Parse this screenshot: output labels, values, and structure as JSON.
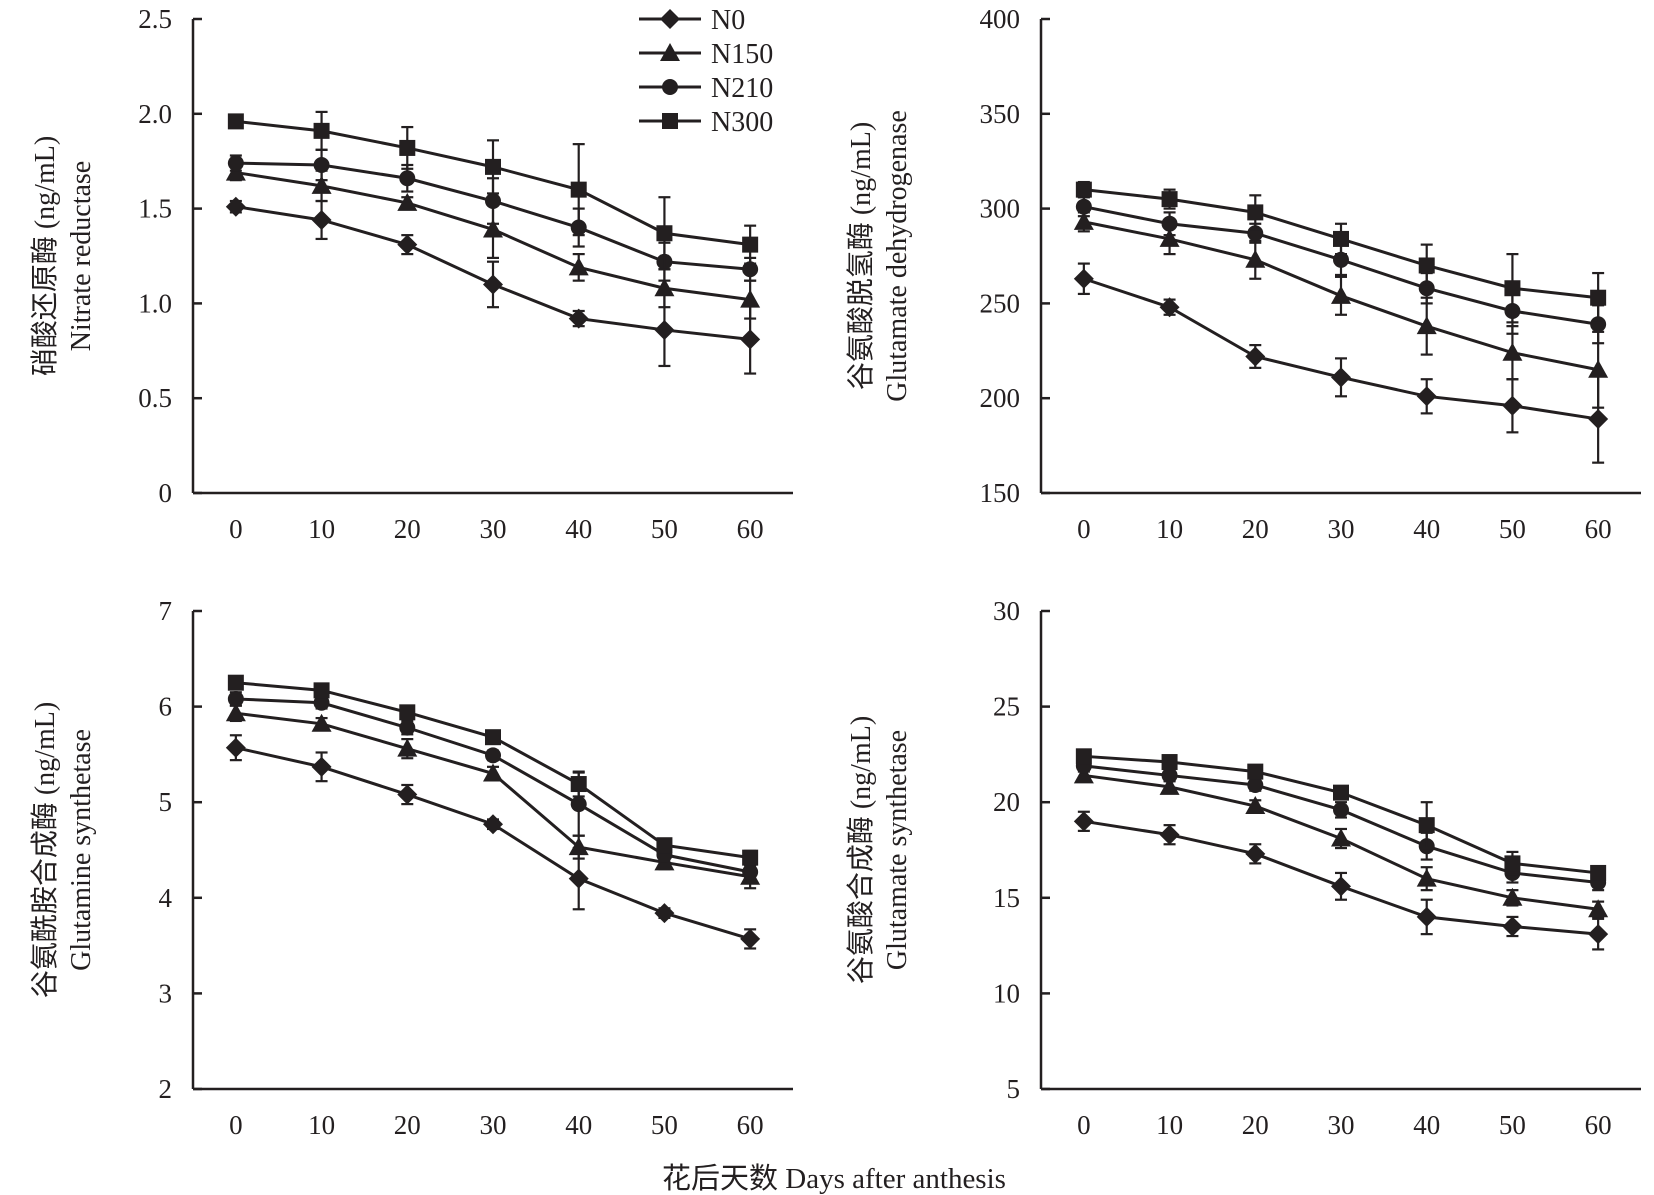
{
  "figure": {
    "shared_xlabel": "花后天数 Days after anthesis",
    "legend": [
      {
        "label": "N0",
        "marker": "diamond"
      },
      {
        "label": "N150",
        "marker": "triangle"
      },
      {
        "label": "N210",
        "marker": "circle"
      },
      {
        "label": "N300",
        "marker": "square"
      }
    ],
    "colors": {
      "ink": "#231f20",
      "background": "#ffffff"
    }
  },
  "chart_data": [
    {
      "type": "line",
      "ylabel_cn": "硝酸还原酶 (ng/mL)",
      "ylabel_en": "Nitrate reductase",
      "xlabel": "",
      "x": [
        0,
        10,
        20,
        30,
        40,
        50,
        60
      ],
      "xlim": [
        -5,
        65
      ],
      "ylim": [
        0,
        2.5
      ],
      "yticks": [
        0,
        0.5,
        1.0,
        1.5,
        2.0,
        2.5
      ],
      "ytick_labels": [
        "0",
        "0.5",
        "1.0",
        "1.5",
        "2.0",
        "2.5"
      ],
      "grid": false,
      "legend_position": "top-right",
      "series": [
        {
          "name": "N0",
          "marker": "diamond",
          "values": [
            1.51,
            1.44,
            1.31,
            1.1,
            0.92,
            0.86,
            0.81
          ],
          "errors": [
            0.03,
            0.1,
            0.05,
            0.12,
            0.04,
            0.19,
            0.18
          ]
        },
        {
          "name": "N150",
          "marker": "triangle",
          "values": [
            1.69,
            1.62,
            1.53,
            1.39,
            1.19,
            1.08,
            1.02
          ],
          "errors": [
            0.04,
            0.08,
            0.03,
            0.15,
            0.07,
            0.1,
            0.1
          ]
        },
        {
          "name": "N210",
          "marker": "circle",
          "values": [
            1.74,
            1.73,
            1.66,
            1.54,
            1.4,
            1.22,
            1.18
          ],
          "errors": [
            0.04,
            0.08,
            0.07,
            0.12,
            0.1,
            0.1,
            0.06
          ]
        },
        {
          "name": "N300",
          "marker": "square",
          "values": [
            1.96,
            1.91,
            1.82,
            1.72,
            1.6,
            1.37,
            1.31
          ],
          "errors": [
            0.02,
            0.1,
            0.11,
            0.14,
            0.24,
            0.19,
            0.1
          ]
        }
      ]
    },
    {
      "type": "line",
      "ylabel_cn": "谷氨酸脱氢酶 (ng/mL)",
      "ylabel_en": "Glutamate dehydrogenase",
      "xlabel": "",
      "x": [
        0,
        10,
        20,
        30,
        40,
        50,
        60
      ],
      "xlim": [
        -5,
        65
      ],
      "ylim": [
        150,
        400
      ],
      "yticks": [
        150,
        200,
        250,
        300,
        350,
        400
      ],
      "ytick_labels": [
        "150",
        "200",
        "250",
        "300",
        "350",
        "400"
      ],
      "grid": false,
      "series": [
        {
          "name": "N0",
          "marker": "diamond",
          "values": [
            263,
            248,
            222,
            211,
            201,
            196,
            189
          ],
          "errors": [
            8,
            4,
            6,
            10,
            9,
            14,
            23
          ]
        },
        {
          "name": "N150",
          "marker": "triangle",
          "values": [
            293,
            284,
            273,
            254,
            238,
            224,
            215
          ],
          "errors": [
            5,
            8,
            10,
            10,
            15,
            14,
            20
          ]
        },
        {
          "name": "N210",
          "marker": "circle",
          "values": [
            301,
            292,
            287,
            273,
            258,
            246,
            239
          ],
          "errors": [
            5,
            6,
            5,
            8,
            8,
            12,
            10
          ]
        },
        {
          "name": "N300",
          "marker": "square",
          "values": [
            310,
            305,
            298,
            284,
            270,
            258,
            253
          ],
          "errors": [
            4,
            5,
            9,
            8,
            11,
            18,
            13
          ]
        }
      ]
    },
    {
      "type": "line",
      "ylabel_cn": "谷氨酰胺合成酶 (ng/mL)",
      "ylabel_en": "Glutamine synthetase",
      "xlabel": "",
      "x": [
        0,
        10,
        20,
        30,
        40,
        50,
        60
      ],
      "xlim": [
        -5,
        65
      ],
      "ylim": [
        2,
        7
      ],
      "yticks": [
        2,
        3,
        4,
        5,
        6,
        7
      ],
      "ytick_labels": [
        "2",
        "3",
        "4",
        "5",
        "6",
        "7"
      ],
      "grid": false,
      "series": [
        {
          "name": "N0",
          "marker": "diamond",
          "values": [
            5.57,
            5.37,
            5.08,
            4.77,
            4.2,
            3.84,
            3.57
          ],
          "errors": [
            0.13,
            0.15,
            0.1,
            0.05,
            0.32,
            0.05,
            0.1
          ]
        },
        {
          "name": "N150",
          "marker": "triangle",
          "values": [
            5.93,
            5.82,
            5.56,
            5.3,
            4.53,
            4.37,
            4.22
          ],
          "errors": [
            0.08,
            0.06,
            0.1,
            0.07,
            0.12,
            0.07,
            0.12
          ]
        },
        {
          "name": "N210",
          "marker": "circle",
          "values": [
            6.08,
            6.04,
            5.78,
            5.49,
            4.98,
            4.45,
            4.27
          ],
          "errors": [
            0.07,
            0.06,
            0.07,
            0.05,
            0.33,
            0.07,
            0.07
          ]
        },
        {
          "name": "N300",
          "marker": "square",
          "values": [
            6.25,
            6.17,
            5.94,
            5.68,
            5.19,
            4.55,
            4.42
          ],
          "errors": [
            0.06,
            0.04,
            0.05,
            0.04,
            0.13,
            0.06,
            0.07
          ]
        }
      ]
    },
    {
      "type": "line",
      "ylabel_cn": "谷氨酸合成酶 (ng/mL)",
      "ylabel_en": "Glutamate synthetase",
      "xlabel": "",
      "x": [
        0,
        10,
        20,
        30,
        40,
        50,
        60
      ],
      "xlim": [
        -5,
        65
      ],
      "ylim": [
        5,
        30
      ],
      "yticks": [
        5,
        10,
        15,
        20,
        25,
        30
      ],
      "ytick_labels": [
        "5",
        "10",
        "15",
        "20",
        "25",
        "30"
      ],
      "grid": false,
      "series": [
        {
          "name": "N0",
          "marker": "diamond",
          "values": [
            19.0,
            18.3,
            17.3,
            15.6,
            14.0,
            13.5,
            13.1
          ],
          "errors": [
            0.5,
            0.5,
            0.5,
            0.7,
            0.9,
            0.5,
            0.8
          ]
        },
        {
          "name": "N150",
          "marker": "triangle",
          "values": [
            21.4,
            20.8,
            19.8,
            18.1,
            16.0,
            15.0,
            14.4
          ],
          "errors": [
            0.3,
            0.3,
            0.3,
            0.5,
            0.6,
            0.4,
            0.4
          ]
        },
        {
          "name": "N210",
          "marker": "circle",
          "values": [
            21.9,
            21.4,
            20.9,
            19.6,
            17.7,
            16.3,
            15.8
          ],
          "errors": [
            0.3,
            0.3,
            0.3,
            0.4,
            0.7,
            0.5,
            0.4
          ]
        },
        {
          "name": "N300",
          "marker": "square",
          "values": [
            22.4,
            22.1,
            21.6,
            20.5,
            18.8,
            16.8,
            16.3
          ],
          "errors": [
            0.3,
            0.3,
            0.3,
            0.3,
            1.2,
            0.6,
            0.3
          ]
        }
      ]
    }
  ]
}
